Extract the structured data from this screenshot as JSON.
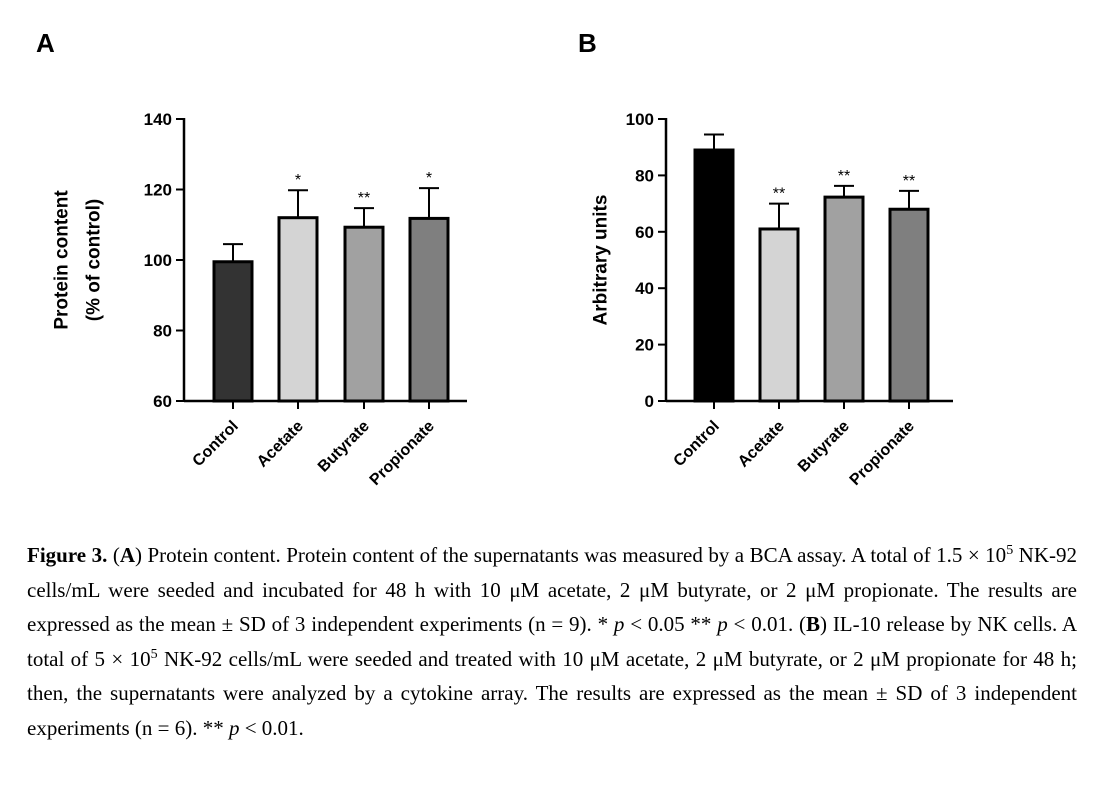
{
  "chart_data": [
    {
      "type": "bar",
      "panel_label": "A",
      "categories": [
        "Control",
        "Acetate",
        "Butyrate",
        "Propionate"
      ],
      "values": [
        99.5,
        112,
        109.3,
        111.8
      ],
      "errors": [
        5,
        7.8,
        5.4,
        8.6
      ],
      "significance": [
        "",
        "*",
        "**",
        "*"
      ],
      "bar_colors": [
        "#333333",
        "#d4d4d4",
        "#a1a1a1",
        "#7f7f7f"
      ],
      "ylabel": [
        "Protein content",
        "(% of control)"
      ],
      "ylim": [
        60,
        140
      ],
      "yticks": [
        60,
        80,
        100,
        120,
        140
      ],
      "legend": "none",
      "grid": false
    },
    {
      "type": "bar",
      "panel_label": "B",
      "categories": [
        "Control",
        "Acetate",
        "Butyrate",
        "Propionate"
      ],
      "values": [
        89,
        61,
        72.3,
        68
      ],
      "errors": [
        5.5,
        9,
        4,
        6.5
      ],
      "significance": [
        "",
        "**",
        "**",
        "**"
      ],
      "bar_colors": [
        "#000000",
        "#d4d4d4",
        "#a1a1a1",
        "#7f7f7f"
      ],
      "ylabel": [
        "Arbitrary units"
      ],
      "ylim": [
        0,
        100
      ],
      "yticks": [
        0,
        20,
        40,
        60,
        80,
        100
      ],
      "legend": "none",
      "grid": false
    }
  ],
  "caption": {
    "figure_label": "Figure 3.",
    "panel_a": "A",
    "panel_b": "B",
    "s1": "(",
    "s2": ") Protein content. Protein content of the supernatants was measured by a BCA assay. A total of 1.5 × 10",
    "sup1": "5",
    "s3": " NK-92 cells/mL were seeded and incubated for 48 h with 10 μM acetate, 2 μM butyrate, or 2 μM propionate. The results are expressed as the mean ± SD of 3 independent experiments (n = 9). * ",
    "p1": "p",
    "s4": " < 0.05 ** ",
    "p2": "p",
    "s5": " < 0.01. (",
    "s6": ") IL-10 release by NK cells. A total of 5 × 10",
    "sup2": "5",
    "s7": " NK-92 cells/mL were seeded and treated with 10 μM acetate, 2 μM butyrate, or 2 μM propionate for 48 h; then, the supernatants were analyzed by a cytokine array. The results are expressed as the mean ± SD of 3 independent experiments (n = 6). ** ",
    "p3": "p",
    "s8": " < 0.01."
  }
}
